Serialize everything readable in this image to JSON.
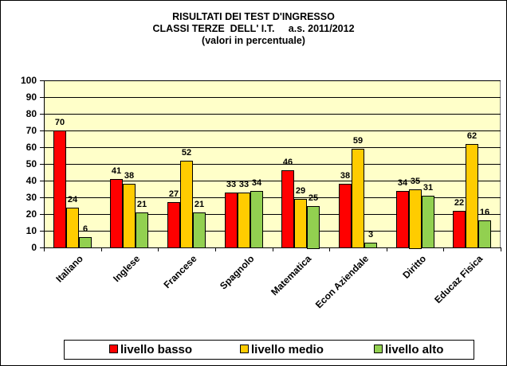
{
  "chart_data": {
    "type": "bar",
    "title": "RISULTATI DEI TEST D'INGRESSO",
    "subtitle_lines": [
      "CLASSI TERZE  DELL' I.T.     a.s. 2011/2012",
      "(valori in percentuale)"
    ],
    "xlabel": "",
    "ylabel": "",
    "ylim": [
      0,
      100
    ],
    "yticks": [
      0,
      10,
      20,
      30,
      40,
      50,
      60,
      70,
      80,
      90,
      100
    ],
    "grid": true,
    "legend_position": "bottom",
    "categories": [
      "Italiano",
      "Inglese",
      "Francese",
      "Spagnolo",
      "Matematica",
      "Econ Aziendale",
      "Diritto",
      "Educaz Fisica"
    ],
    "series": [
      {
        "name": "livello basso",
        "color": "#ff0000",
        "values": [
          70,
          41,
          27,
          33,
          46,
          38,
          34,
          22
        ]
      },
      {
        "name": "livello medio",
        "color": "#ffcc00",
        "values": [
          24,
          38,
          52,
          33,
          29,
          59,
          35,
          62
        ]
      },
      {
        "name": "livello alto",
        "color": "#92d050",
        "values": [
          6,
          21,
          21,
          34,
          25,
          3,
          31,
          16
        ]
      }
    ],
    "plot_background": "#ffffc9"
  },
  "title": {
    "line1": "RISULTATI DEI TEST D'INGRESSO",
    "line2": "CLASSI TERZE  DELL' I.T.     a.s. 2011/2012",
    "line3": "(valori in percentuale)"
  },
  "legend": {
    "items": [
      {
        "label": "livello basso",
        "color": "#ff0000"
      },
      {
        "label": "livello medio",
        "color": "#ffcc00"
      },
      {
        "label": "livello alto",
        "color": "#92d050"
      }
    ]
  }
}
